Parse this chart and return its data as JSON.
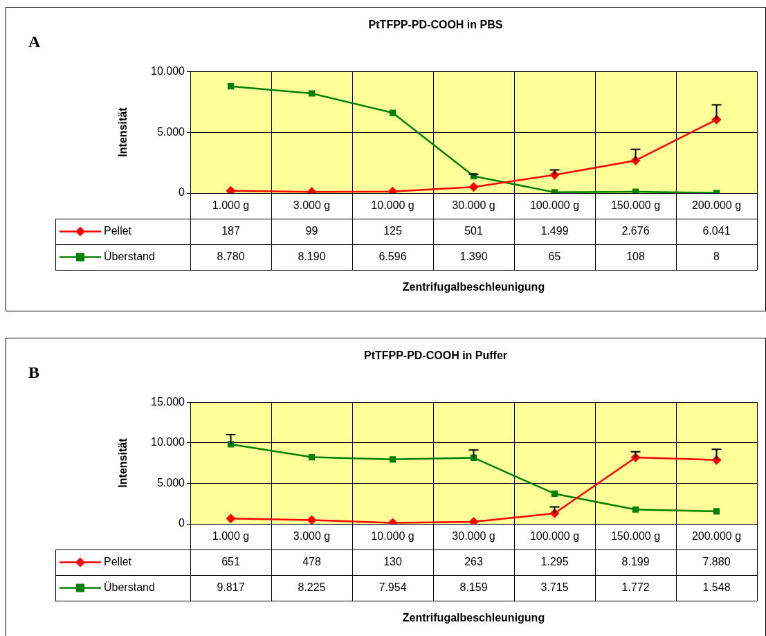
{
  "chart_data": [
    {
      "type": "line",
      "title": "PtTFPP-PD-COOH in PBS",
      "xlabel": "Zentrifugalbeschleunigung",
      "ylabel": "Intensität",
      "annotations": [
        "A"
      ],
      "categories": [
        "1.000 g",
        "3.000 g",
        "10.000 g",
        "30.000 g",
        "100.000 g",
        "150.000 g",
        "200.000 g"
      ],
      "ylim": [
        0,
        10000
      ],
      "yticks": [
        0,
        {
          "value": 5000,
          "label": "5.000"
        },
        {
          "value": 10000,
          "label": "10.000"
        }
      ],
      "grid": true,
      "legend": "bottom",
      "series": [
        {
          "name": "Pellet",
          "color": "#ff0000",
          "marker": "diamond",
          "values": [
            187,
            99,
            125,
            501,
            1499,
            2676,
            6041
          ],
          "value_labels": [
            "187",
            "99",
            "125",
            "501",
            "1.499",
            "2.676",
            "6.041"
          ],
          "errors": [
            null,
            null,
            null,
            null,
            [
              1499,
              1900
            ],
            [
              2676,
              3600
            ],
            [
              6041,
              7250
            ]
          ]
        },
        {
          "name": "Überstand",
          "color": "#008000",
          "marker": "square",
          "values": [
            8780,
            8190,
            6596,
            1390,
            65,
            108,
            8
          ],
          "value_labels": [
            "8.780",
            "8.190",
            "6.596",
            "1.390",
            "65",
            "108",
            "8"
          ],
          "errors": [
            null,
            null,
            null,
            [
              1390,
              1550
            ],
            null,
            null,
            null
          ]
        }
      ]
    },
    {
      "type": "line",
      "title": "PtTFPP-PD-COOH in Puffer",
      "xlabel": "Zentrifugalbeschleunigung",
      "ylabel": "Intensität",
      "annotations": [
        "B"
      ],
      "categories": [
        "1.000 g",
        "3.000 g",
        "10.000 g",
        "30.000 g",
        "100.000 g",
        "150.000 g",
        "200.000 g"
      ],
      "ylim": [
        0,
        15000
      ],
      "yticks": [
        0,
        {
          "value": 5000,
          "label": "5.000"
        },
        {
          "value": 10000,
          "label": "10.000"
        },
        {
          "value": 15000,
          "label": "15.000"
        }
      ],
      "grid": true,
      "legend": "bottom",
      "series": [
        {
          "name": "Pellet",
          "color": "#ff0000",
          "marker": "diamond",
          "values": [
            651,
            478,
            130,
            263,
            1295,
            8199,
            7880
          ],
          "value_labels": [
            "651",
            "478",
            "130",
            "263",
            "1.295",
            "8.199",
            "7.880"
          ],
          "errors": [
            null,
            null,
            null,
            null,
            [
              1295,
              2100
            ],
            [
              8199,
              8900
            ],
            [
              7880,
              9200
            ]
          ]
        },
        {
          "name": "Überstand",
          "color": "#008000",
          "marker": "square",
          "values": [
            9817,
            8225,
            7954,
            8159,
            3715,
            1772,
            1548
          ],
          "value_labels": [
            "9.817",
            "8.225",
            "7.954",
            "8.159",
            "3.715",
            "1.772",
            "1.548"
          ],
          "errors": [
            [
              9817,
              11000
            ],
            null,
            null,
            [
              8159,
              9100
            ],
            null,
            null,
            null
          ]
        }
      ]
    }
  ]
}
